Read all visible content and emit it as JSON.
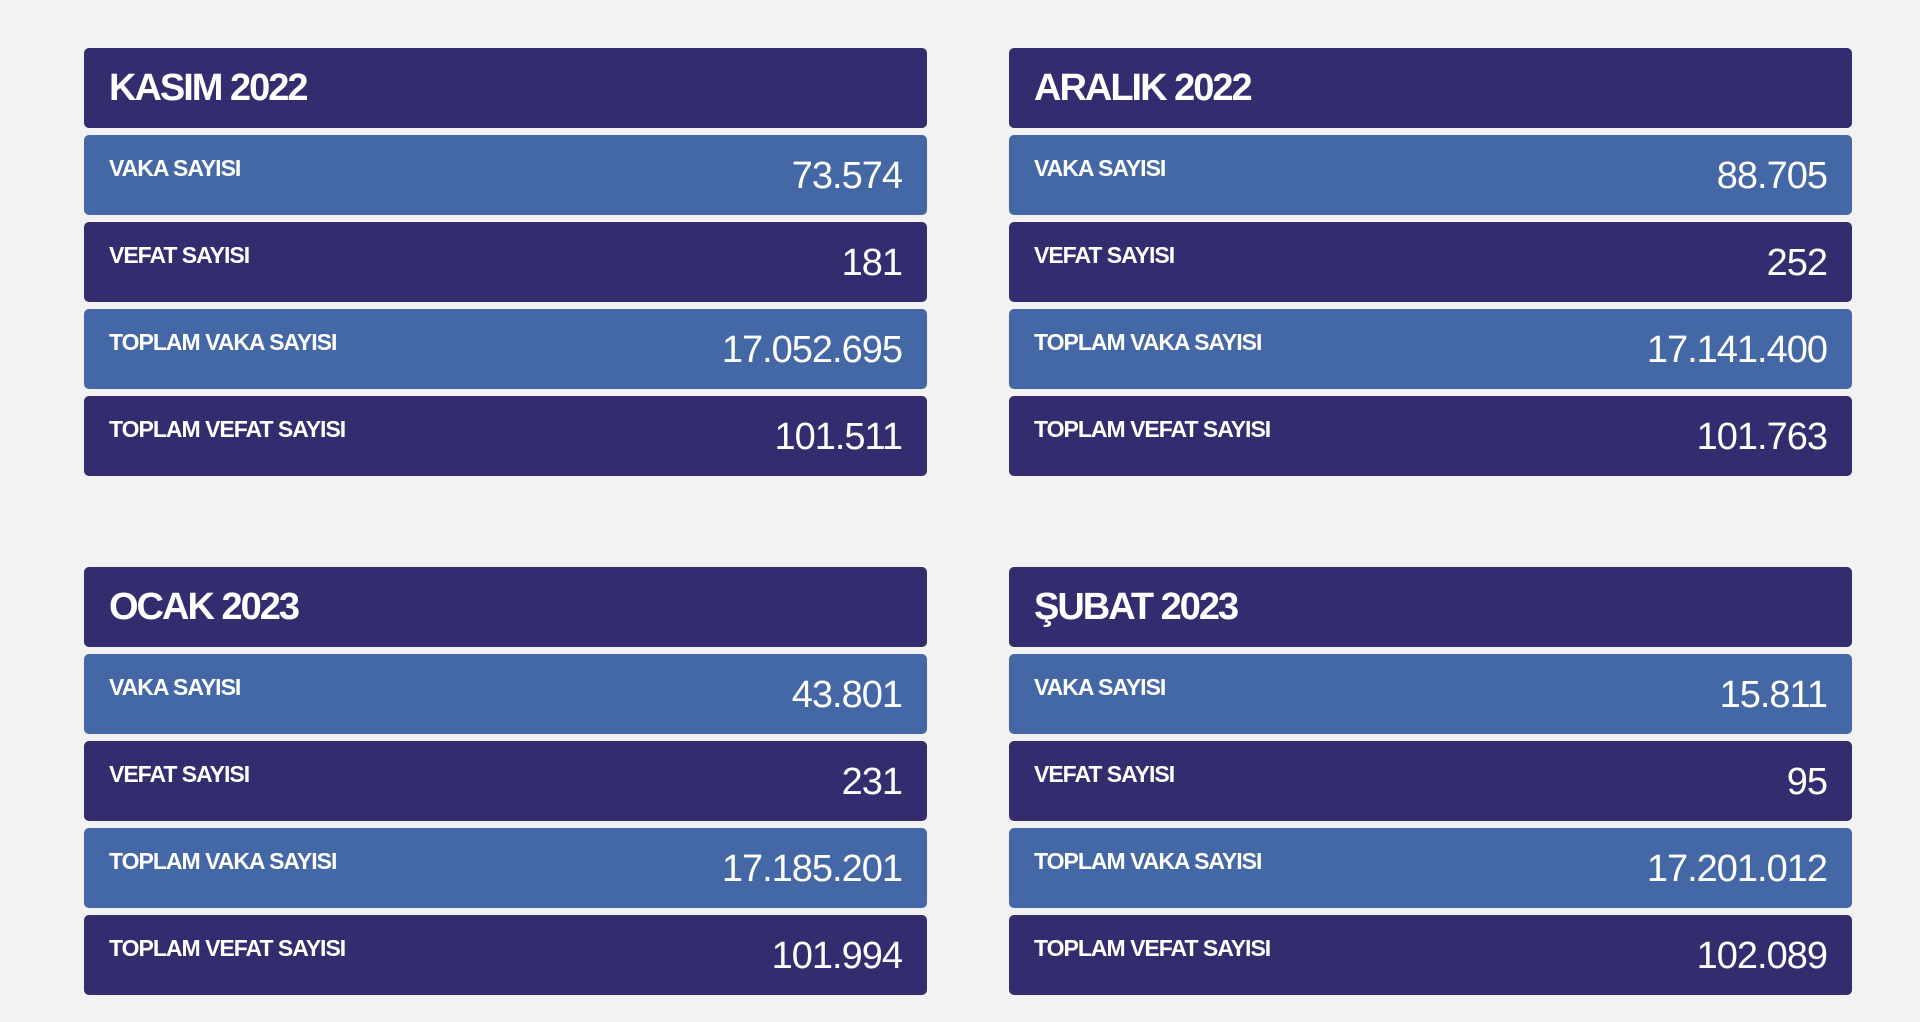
{
  "colors": {
    "header": "#332c6e",
    "row_light": "#4467a6",
    "row_dark": "#332c6e",
    "background": "#f2f2f2"
  },
  "cards": [
    {
      "title": "KASIM 2022",
      "rows": [
        {
          "label": "VAKA SAYISI",
          "value": "73.574"
        },
        {
          "label": "VEFAT SAYISI",
          "value": "181"
        },
        {
          "label": "TOPLAM VAKA SAYISI",
          "value": "17.052.695"
        },
        {
          "label": "TOPLAM VEFAT SAYISI",
          "value": "101.511"
        }
      ]
    },
    {
      "title": "ARALIK 2022",
      "rows": [
        {
          "label": "VAKA SAYISI",
          "value": "88.705"
        },
        {
          "label": "VEFAT SAYISI",
          "value": "252"
        },
        {
          "label": "TOPLAM VAKA SAYISI",
          "value": "17.141.400"
        },
        {
          "label": "TOPLAM VEFAT SAYISI",
          "value": "101.763"
        }
      ]
    },
    {
      "title": "OCAK 2023",
      "rows": [
        {
          "label": "VAKA SAYISI",
          "value": "43.801"
        },
        {
          "label": "VEFAT SAYISI",
          "value": "231"
        },
        {
          "label": "TOPLAM VAKA SAYISI",
          "value": "17.185.201"
        },
        {
          "label": "TOPLAM VEFAT SAYISI",
          "value": "101.994"
        }
      ]
    },
    {
      "title": "ŞUBAT 2023",
      "rows": [
        {
          "label": "VAKA SAYISI",
          "value": "15.811"
        },
        {
          "label": "VEFAT SAYISI",
          "value": "95"
        },
        {
          "label": "TOPLAM VAKA SAYISI",
          "value": "17.201.012"
        },
        {
          "label": "TOPLAM VEFAT SAYISI",
          "value": "102.089"
        }
      ]
    }
  ]
}
